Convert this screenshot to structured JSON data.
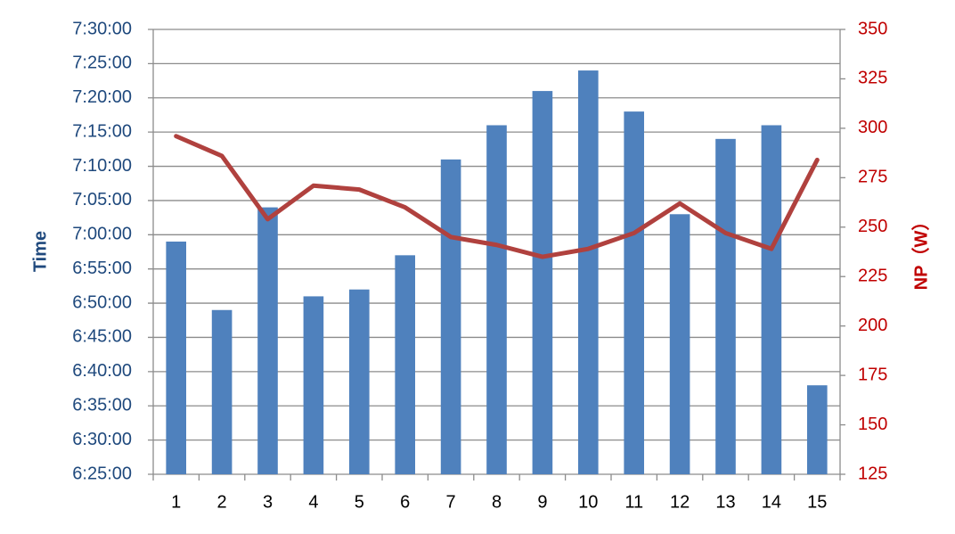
{
  "chart_data": {
    "type": "bar",
    "categories": [
      "1",
      "2",
      "3",
      "4",
      "5",
      "6",
      "7",
      "8",
      "9",
      "10",
      "11",
      "12",
      "13",
      "14",
      "15"
    ],
    "series": [
      {
        "name": "Time",
        "type": "bar",
        "color": "#4f81bd",
        "axis": "y",
        "values": [
          25140,
          24540,
          25440,
          24660,
          24720,
          25020,
          25860,
          26160,
          26460,
          26640,
          26280,
          25380,
          26040,
          26160,
          23880
        ]
      },
      {
        "name": "NP（W）",
        "type": "line",
        "color": "#b0413e",
        "axis": "y2",
        "values": [
          296,
          286,
          254,
          271,
          269,
          260,
          245,
          241,
          235,
          239,
          247,
          262,
          247,
          239,
          284
        ]
      }
    ],
    "ylabel": "Time",
    "y2label": "NP（W）",
    "ylim": [
      23100,
      27000
    ],
    "yticks": [
      {
        "value": 23100,
        "label": "6:25:00"
      },
      {
        "value": 23400,
        "label": "6:30:00"
      },
      {
        "value": 23700,
        "label": "6:35:00"
      },
      {
        "value": 24000,
        "label": "6:40:00"
      },
      {
        "value": 24300,
        "label": "6:45:00"
      },
      {
        "value": 24600,
        "label": "6:50:00"
      },
      {
        "value": 24900,
        "label": "6:55:00"
      },
      {
        "value": 25200,
        "label": "7:00:00"
      },
      {
        "value": 25500,
        "label": "7:05:00"
      },
      {
        "value": 25800,
        "label": "7:10:00"
      },
      {
        "value": 26100,
        "label": "7:15:00"
      },
      {
        "value": 26400,
        "label": "7:20:00"
      },
      {
        "value": 26700,
        "label": "7:25:00"
      },
      {
        "value": 27000,
        "label": "7:30:00"
      }
    ],
    "y2lim": [
      125,
      350
    ],
    "y2ticks": [
      125,
      150,
      175,
      200,
      225,
      250,
      275,
      300,
      325,
      350
    ],
    "grid": true
  }
}
